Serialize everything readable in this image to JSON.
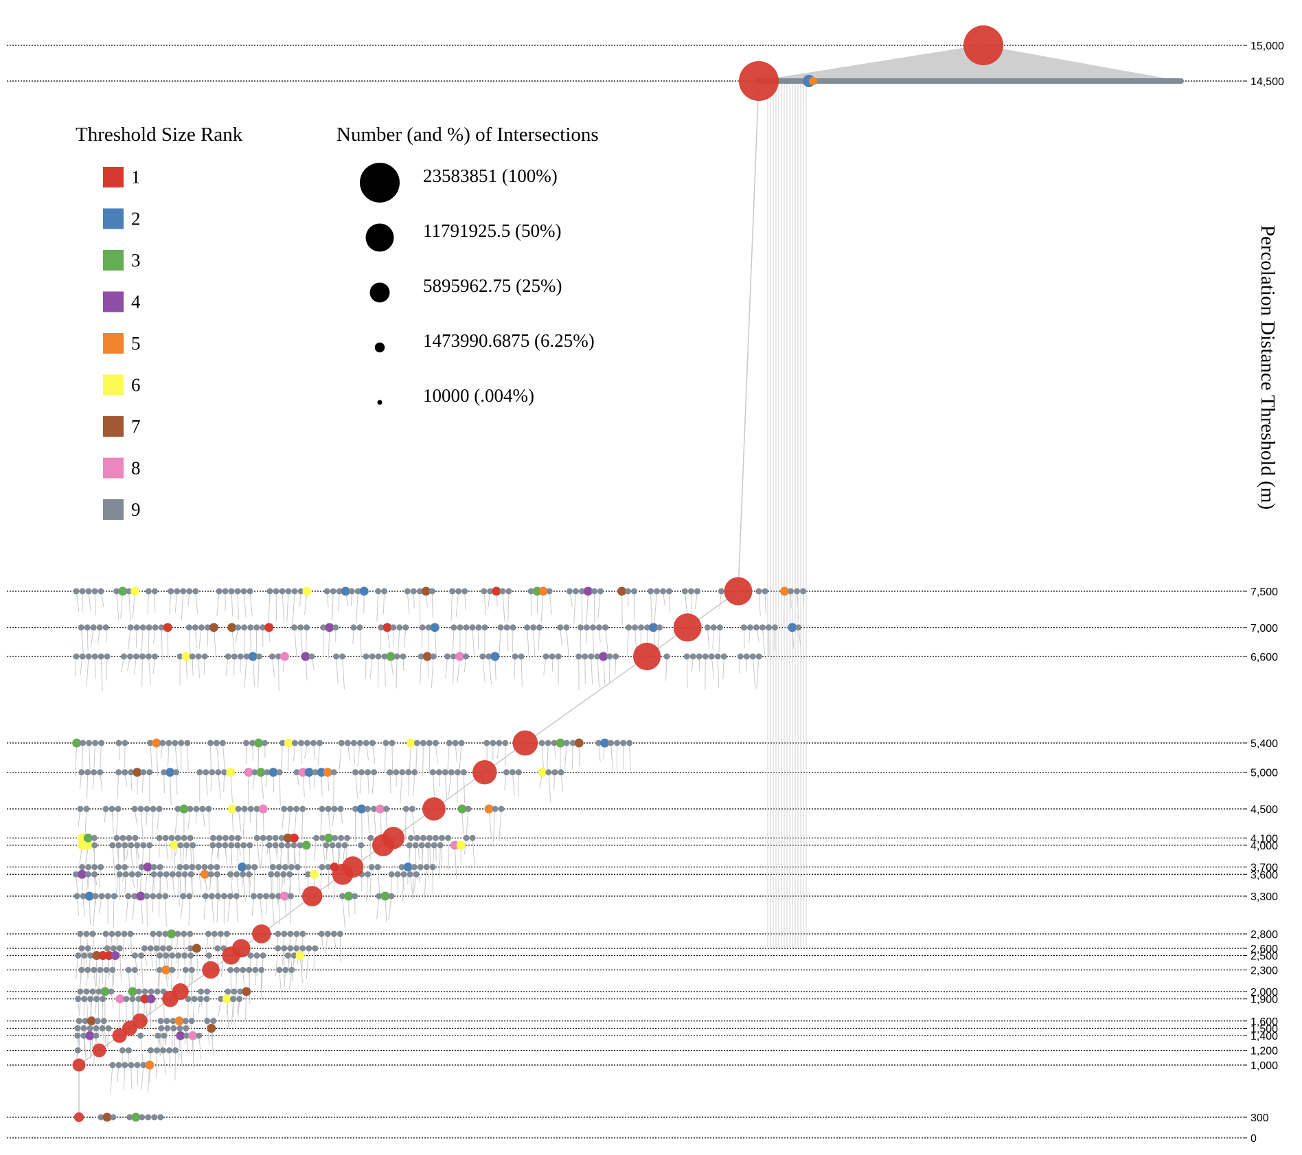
{
  "chart_data": {
    "type": "scatter",
    "subtype": "percolation dendrogram",
    "title": "",
    "ylabel": "Percolation Distance Threshold (m)",
    "y_ticks": [
      0,
      300,
      1000,
      1200,
      1400,
      1500,
      1600,
      1900,
      2000,
      2300,
      2500,
      2600,
      2800,
      3300,
      3600,
      3700,
      4000,
      4100,
      4500,
      5000,
      5400,
      6600,
      7000,
      7500,
      14500,
      15000
    ],
    "y_tick_labels": [
      "0",
      "300",
      "1,000",
      "1,200",
      "1,400",
      "1,500",
      "1,600",
      "1,900",
      "2,000",
      "2,300",
      "2,500",
      "2,600",
      "2,800",
      "3,300",
      "3,600",
      "3,700",
      "4,000",
      "4,100",
      "4,500",
      "5,000",
      "5,400",
      "6,600",
      "7,000",
      "7,500",
      "14,500",
      "15,000"
    ],
    "grid": "dotted horizontal line at each threshold",
    "color_legend": {
      "title": "Threshold Size Rank",
      "items": [
        {
          "label": "1",
          "color": "#d63a2f"
        },
        {
          "label": "2",
          "color": "#4a7fb8"
        },
        {
          "label": "3",
          "color": "#63ad52"
        },
        {
          "label": "4",
          "color": "#8e4ea5"
        },
        {
          "label": "5",
          "color": "#f2852c"
        },
        {
          "label": "6",
          "color": "#fbfb51"
        },
        {
          "label": "7",
          "color": "#a05932"
        },
        {
          "label": "8",
          "color": "#ec86bf"
        },
        {
          "label": "9",
          "color": "#818b96"
        }
      ]
    },
    "size_legend": {
      "title": "Number (and %) of Intersections",
      "items": [
        {
          "label": "23583851 (100%)",
          "value": 23583851
        },
        {
          "label": "11791925.5 (50%)",
          "value": 11791925.5
        },
        {
          "label": "5895962.75 (25%)",
          "value": 5895962.75
        },
        {
          "label": "1473990.6875 (6.25%)",
          "value": 1473990.6875
        },
        {
          "label": "10000 (.004%)",
          "value": 10000
        }
      ]
    },
    "largest_clusters": [
      {
        "threshold": 15000,
        "rank": 1
      },
      {
        "threshold": 14500,
        "rank": 1
      },
      {
        "threshold": 7500,
        "rank": 1
      },
      {
        "threshold": 7000,
        "rank": 1
      },
      {
        "threshold": 6600,
        "rank": 1
      },
      {
        "threshold": 5400,
        "rank": 1
      },
      {
        "threshold": 5000,
        "rank": 1
      },
      {
        "threshold": 4500,
        "rank": 1
      },
      {
        "threshold": 4100,
        "rank": 1
      },
      {
        "threshold": 4000,
        "rank": 1
      },
      {
        "threshold": 3700,
        "rank": 1
      },
      {
        "threshold": 3600,
        "rank": 1
      },
      {
        "threshold": 3300,
        "rank": 1
      },
      {
        "threshold": 2800,
        "rank": 1
      },
      {
        "threshold": 2600,
        "rank": 1
      },
      {
        "threshold": 2500,
        "rank": 1
      },
      {
        "threshold": 2300,
        "rank": 1
      },
      {
        "threshold": 2000,
        "rank": 1
      },
      {
        "threshold": 1900,
        "rank": 1
      },
      {
        "threshold": 1600,
        "rank": 1
      },
      {
        "threshold": 1500,
        "rank": 1
      },
      {
        "threshold": 1400,
        "rank": 1
      },
      {
        "threshold": 1200,
        "rank": 1
      },
      {
        "threshold": 1000,
        "rank": 1
      },
      {
        "threshold": 300,
        "rank": 1
      }
    ]
  }
}
